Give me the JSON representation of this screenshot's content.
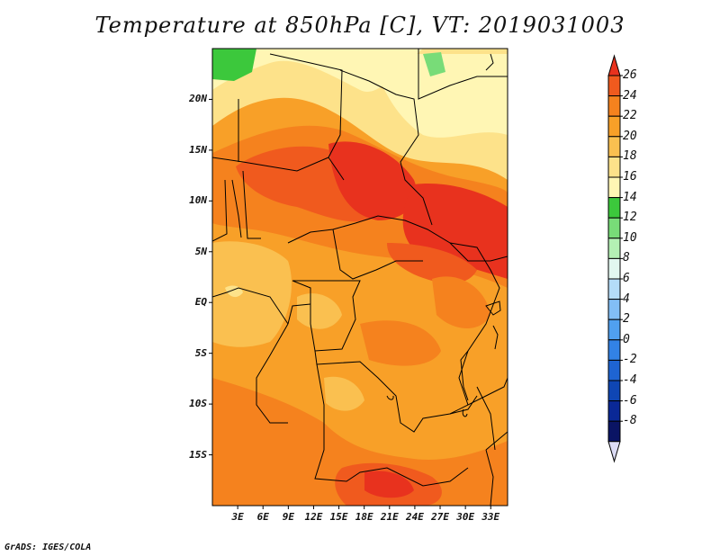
{
  "title": "Temperature at 850hPa [C], VT: 2019031003",
  "credit": "GrADS: IGES/COLA",
  "map": {
    "variable": "Temperature at 850hPa",
    "units": "C",
    "valid_time": "2019031003",
    "lon_range": [
      0,
      35
    ],
    "lat_range": [
      -20,
      25
    ],
    "y_ticks": [
      {
        "lat": 20,
        "label": "20N"
      },
      {
        "lat": 15,
        "label": "15N"
      },
      {
        "lat": 10,
        "label": "10N"
      },
      {
        "lat": 5,
        "label": "5N"
      },
      {
        "lat": 0,
        "label": "EQ"
      },
      {
        "lat": -5,
        "label": "5S"
      },
      {
        "lat": -10,
        "label": "10S"
      },
      {
        "lat": -15,
        "label": "15S"
      }
    ],
    "x_ticks": [
      {
        "lon": 3,
        "label": "3E"
      },
      {
        "lon": 6,
        "label": "6E"
      },
      {
        "lon": 9,
        "label": "9E"
      },
      {
        "lon": 12,
        "label": "12E"
      },
      {
        "lon": 15,
        "label": "15E"
      },
      {
        "lon": 18,
        "label": "18E"
      },
      {
        "lon": 21,
        "label": "21E"
      },
      {
        "lon": 24,
        "label": "24E"
      },
      {
        "lon": 27,
        "label": "27E"
      },
      {
        "lon": 30,
        "label": "30E"
      },
      {
        "lon": 33,
        "label": "33E"
      }
    ]
  },
  "colorbar": {
    "labels": [
      "26",
      "24",
      "22",
      "20",
      "18",
      "16",
      "14",
      "12",
      "10",
      "8",
      "6",
      "4",
      "2",
      "0",
      "-2",
      "-4",
      "-6",
      "-8"
    ],
    "colors": [
      "#e8321e",
      "#f05a1e",
      "#f5821e",
      "#f8a028",
      "#fac050",
      "#fde28a",
      "#fff6b4",
      "#3cc83c",
      "#78dc78",
      "#b4f0b4",
      "#e2f8f0",
      "#b4dcf8",
      "#82bef5",
      "#50a0f0",
      "#3282e6",
      "#1e64d2",
      "#0f46b4",
      "#0a2896",
      "#0a1464",
      "#dcdcf5"
    ]
  }
}
